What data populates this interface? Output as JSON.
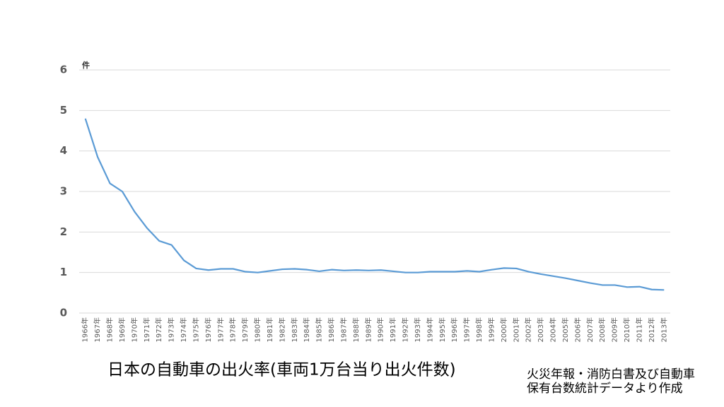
{
  "chart_data": {
    "type": "line",
    "title": "日本の自動車の出火率(車両1万台当り出火件数)",
    "y_label": "件",
    "source_lines": [
      "火災年報・消防白書及び自動車",
      "保有台数統計データより作成"
    ],
    "categories": [
      "1966年",
      "1967年",
      "1968年",
      "1969年",
      "1970年",
      "1971年",
      "1972年",
      "1973年",
      "1974年",
      "1975年",
      "1976年",
      "1977年",
      "1978年",
      "1979年",
      "1980年",
      "1981年",
      "1982年",
      "1983年",
      "1984年",
      "1985年",
      "1986年",
      "1987年",
      "1988年",
      "1989年",
      "1990年",
      "1991年",
      "1992年",
      "1993年",
      "1994年",
      "1995年",
      "1996年",
      "1997年",
      "1998年",
      "1999年",
      "2000年",
      "2001年",
      "2002年",
      "2003年",
      "2004年",
      "2005年",
      "2006年",
      "2007年",
      "2008年",
      "2009年",
      "2010年",
      "2011年",
      "2012年",
      "2013年"
    ],
    "values": [
      4.8,
      3.85,
      3.2,
      3.0,
      2.5,
      2.1,
      1.78,
      1.68,
      1.3,
      1.1,
      1.06,
      1.09,
      1.09,
      1.02,
      1.0,
      1.04,
      1.08,
      1.09,
      1.07,
      1.03,
      1.07,
      1.05,
      1.06,
      1.05,
      1.06,
      1.03,
      1.0,
      1.0,
      1.02,
      1.02,
      1.02,
      1.04,
      1.02,
      1.07,
      1.11,
      1.1,
      1.02,
      0.96,
      0.91,
      0.86,
      0.8,
      0.74,
      0.69,
      0.69,
      0.64,
      0.65,
      0.58,
      0.57
    ],
    "color": "#5b9bd5",
    "ylim": [
      0,
      6
    ],
    "yticks": [
      0,
      1,
      2,
      3,
      4,
      5,
      6
    ],
    "grid": true
  }
}
